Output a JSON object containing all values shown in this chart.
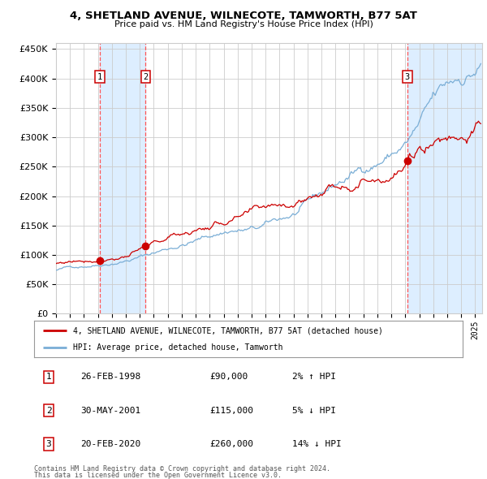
{
  "title": "4, SHETLAND AVENUE, WILNECOTE, TAMWORTH, B77 5AT",
  "subtitle": "Price paid vs. HM Land Registry's House Price Index (HPI)",
  "sale1_year": 1998.15,
  "sale1_price": 90000,
  "sale2_year": 2001.41,
  "sale2_price": 115000,
  "sale3_year": 2020.15,
  "sale3_price": 260000,
  "hpi_color": "#7aaed6",
  "price_color": "#cc0000",
  "dot_color": "#cc0000",
  "shade_color": "#ddeeff",
  "vline_color": "#ff5555",
  "grid_color": "#cccccc",
  "background_color": "#ffffff",
  "ylim_min": 0,
  "ylim_max": 460000,
  "xlim_min": 1995.0,
  "xlim_max": 2025.5,
  "legend_label_red": "4, SHETLAND AVENUE, WILNECOTE, TAMWORTH, B77 5AT (detached house)",
  "legend_label_blue": "HPI: Average price, detached house, Tamworth",
  "footer1": "Contains HM Land Registry data © Crown copyright and database right 2024.",
  "footer2": "This data is licensed under the Open Government Licence v3.0.",
  "table_rows": [
    {
      "num": "1",
      "date": "26-FEB-1998",
      "price": "£90,000",
      "hpi": "2% ↑ HPI"
    },
    {
      "num": "2",
      "date": "30-MAY-2001",
      "price": "£115,000",
      "hpi": "5% ↓ HPI"
    },
    {
      "num": "3",
      "date": "20-FEB-2020",
      "price": "£260,000",
      "hpi": "14% ↓ HPI"
    }
  ]
}
